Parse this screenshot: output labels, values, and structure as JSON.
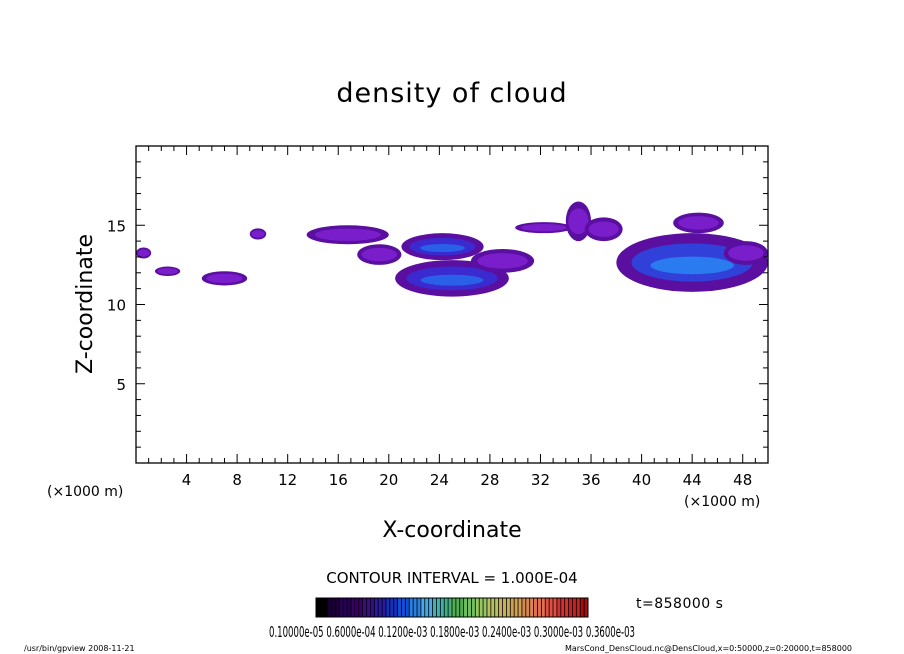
{
  "chart_data": {
    "type": "heatmap",
    "title": "density of cloud",
    "xlabel": "X-coordinate",
    "ylabel": "Z-coordinate",
    "x_units": "(×1000 m)",
    "y_units": "(×1000 m)",
    "xlim": [
      0,
      50
    ],
    "ylim": [
      0,
      20
    ],
    "x_ticks": [
      "4",
      "8",
      "12",
      "16",
      "20",
      "24",
      "28",
      "32",
      "36",
      "40",
      "44",
      "48"
    ],
    "y_ticks": [
      "5",
      "10",
      "15"
    ],
    "contour_interval": "CONTOUR INTERVAL = 1.000E-04",
    "time_label": "t=858000 s",
    "colorbar_labels": "0.10000e-05 0.6000e-04 0.1200e-03 0.1800e-03 0.2400e-03 0.3000e-03 0.3600e-03",
    "colorbar_colors": [
      "#000000",
      "#1a0033",
      "#2a0055",
      "#3a006a",
      "#3b0b8a",
      "#2a1aa0",
      "#1530b8",
      "#1050d0",
      "#2a80e0",
      "#4aa8e8",
      "#40b0b0",
      "#40b080",
      "#50b050",
      "#70c060",
      "#98c860",
      "#b8c060",
      "#c8b060",
      "#d0a050",
      "#d88850",
      "#e07050",
      "#e05040",
      "#d83030",
      "#c82020",
      "#a01010"
    ],
    "cloud_regions": [
      {
        "x": [
          0.0,
          1.2
        ],
        "z": [
          12.9,
          13.6
        ],
        "peak": "low"
      },
      {
        "x": [
          1.5,
          3.5
        ],
        "z": [
          11.8,
          12.4
        ],
        "peak": "low"
      },
      {
        "x": [
          5.2,
          8.8
        ],
        "z": [
          11.2,
          12.1
        ],
        "peak": "low"
      },
      {
        "x": [
          9.0,
          10.3
        ],
        "z": [
          14.1,
          14.8
        ],
        "peak": "low"
      },
      {
        "x": [
          13.5,
          20.0
        ],
        "z": [
          13.8,
          15.0
        ],
        "peak": "low"
      },
      {
        "x": [
          17.5,
          21.0
        ],
        "z": [
          12.5,
          13.8
        ],
        "peak": "low"
      },
      {
        "x": [
          20.5,
          29.5
        ],
        "z": [
          10.5,
          12.8
        ],
        "peak": "medium"
      },
      {
        "x": [
          21.0,
          27.5
        ],
        "z": [
          12.8,
          14.5
        ],
        "peak": "medium"
      },
      {
        "x": [
          26.5,
          31.5
        ],
        "z": [
          12.0,
          13.5
        ],
        "peak": "low"
      },
      {
        "x": [
          30.0,
          34.5
        ],
        "z": [
          14.5,
          15.2
        ],
        "peak": "low"
      },
      {
        "x": [
          34.0,
          36.0
        ],
        "z": [
          14.0,
          16.5
        ],
        "peak": "low"
      },
      {
        "x": [
          35.5,
          38.5
        ],
        "z": [
          14.0,
          15.5
        ],
        "peak": "low"
      },
      {
        "x": [
          38.0,
          50.0
        ],
        "z": [
          10.8,
          14.5
        ],
        "peak": "high"
      },
      {
        "x": [
          42.5,
          46.5
        ],
        "z": [
          14.5,
          15.8
        ],
        "peak": "low"
      },
      {
        "x": [
          46.5,
          50.0
        ],
        "z": [
          12.5,
          14.0
        ],
        "peak": "low"
      }
    ]
  },
  "footer": {
    "left": "/usr/bin/gpview  2008-11-21",
    "right": "MarsCond_DensCloud.nc@DensCloud,x=0:50000,z=0:20000,t=858000"
  }
}
